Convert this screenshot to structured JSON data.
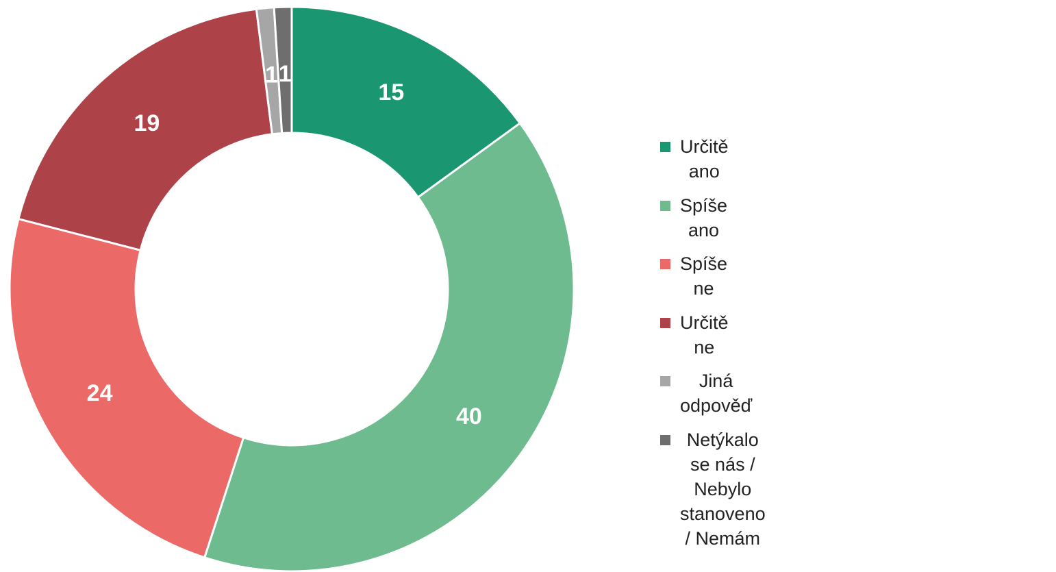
{
  "chart_data": {
    "type": "donut",
    "categories": [
      "Určitě ano",
      "Spíše ano",
      "Spíše ne",
      "Určitě ne",
      "Jiná odpověď",
      "Netýkalo se nás / Nebylo stanoveno / Nemám"
    ],
    "values": [
      15,
      40,
      24,
      19,
      1,
      1
    ],
    "colors": [
      "#1a9670",
      "#6dbb8e",
      "#eb6a68",
      "#ad4249",
      "#a6a6a6",
      "#6e6e6e"
    ],
    "legend": "right"
  }
}
